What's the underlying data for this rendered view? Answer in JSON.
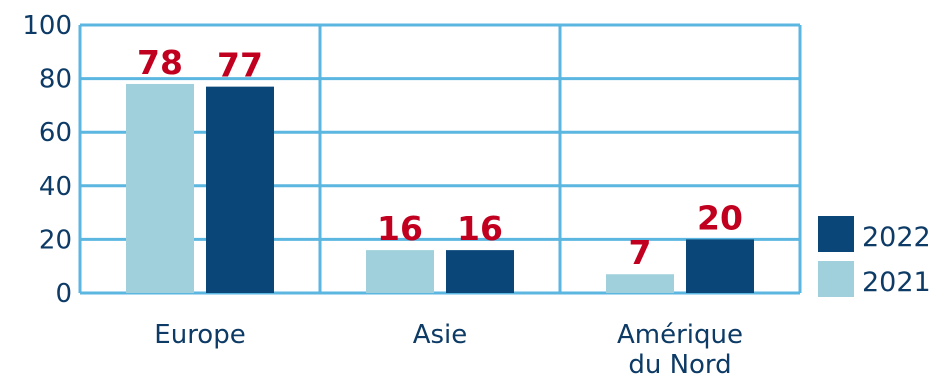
{
  "chart_data": {
    "type": "bar",
    "categories": [
      "Europe",
      "Asie",
      "Amérique du Nord"
    ],
    "category_lines": [
      [
        "Europe"
      ],
      [
        "Asie"
      ],
      [
        "Amérique",
        "du Nord"
      ]
    ],
    "series": [
      {
        "name": "2021",
        "values": [
          78,
          16,
          7
        ],
        "color": "#9fd0dc"
      },
      {
        "name": "2022",
        "values": [
          77,
          16,
          20
        ],
        "color": "#0a4678"
      }
    ],
    "yticks": [
      0,
      20,
      40,
      60,
      80,
      100
    ],
    "ylim": [
      0,
      100
    ],
    "grid": true,
    "legend_placement": "right",
    "legend_order": [
      "2022",
      "2021"
    ],
    "label_color": "#c1001f",
    "axis_color": "#0d3b66",
    "grid_color": "#5bb6e0"
  }
}
